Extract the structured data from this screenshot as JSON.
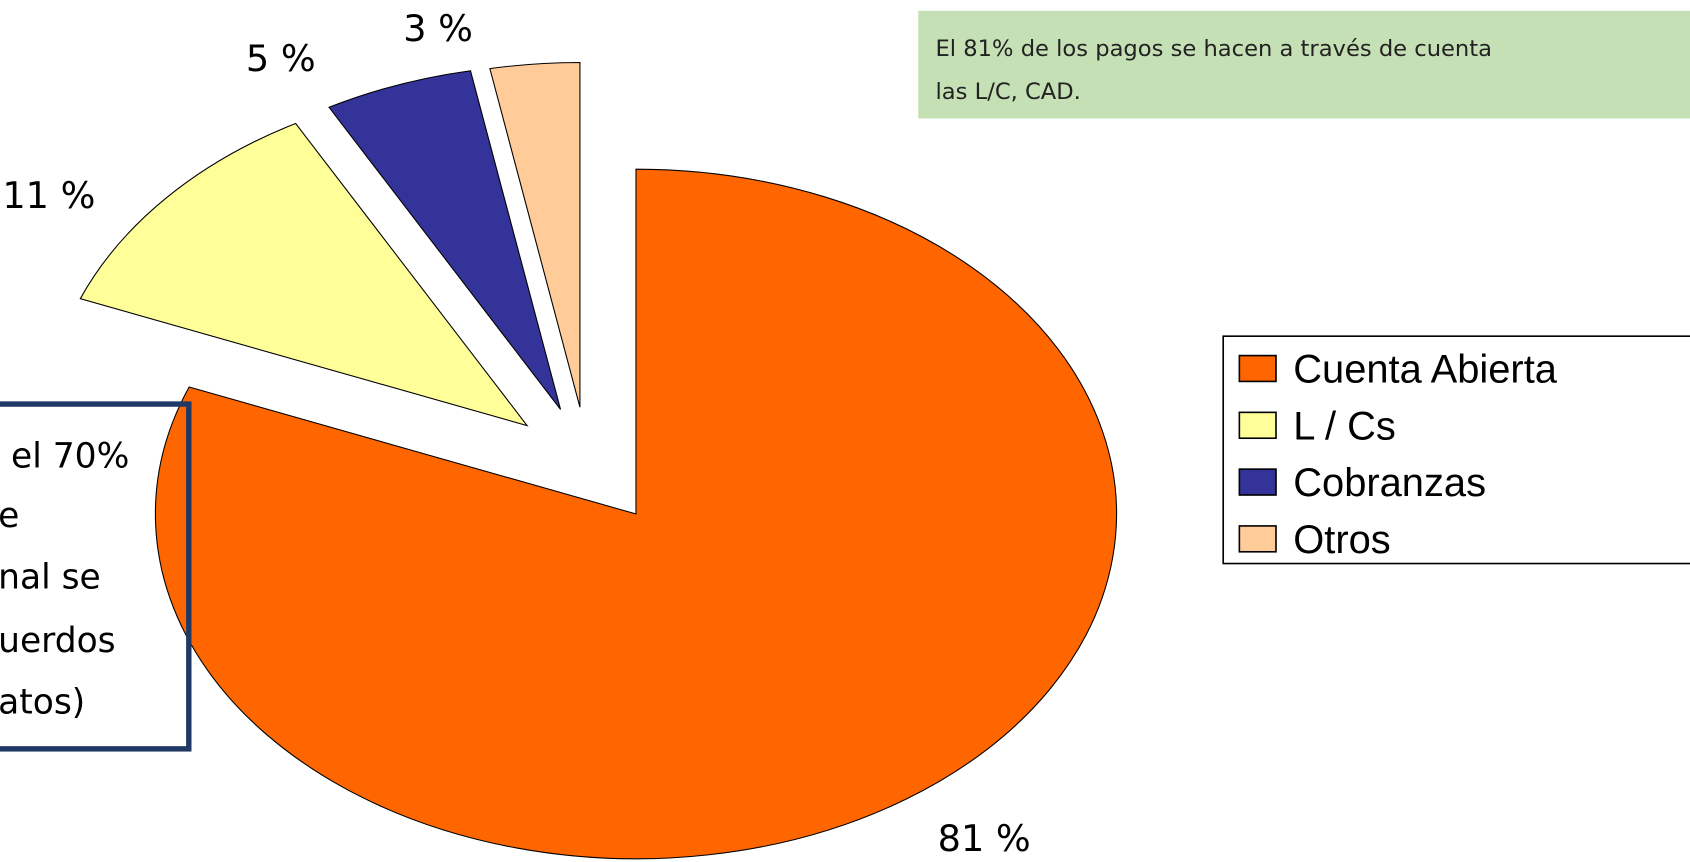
{
  "chart_data": {
    "type": "pie",
    "categories": [
      "Cuenta Abierta",
      "L / Cs",
      "Cobranzas",
      "Otros"
    ],
    "values": [
      81,
      11,
      5,
      3
    ],
    "value_labels": [
      "81 %",
      "11 %",
      "5 %",
      "3 %"
    ],
    "colors": [
      "#ff6600",
      "#ffff99",
      "#333399",
      "#ffcc99"
    ],
    "legend": "right",
    "annotations": [
      {
        "lines": [
          "El 81% de los pagos se hacen a través de cuenta",
          "las L/C, CAD."
        ]
      },
      {
        "lines": [
          "el 70%",
          "e",
          "nal se",
          "uerdos",
          "atos)"
        ]
      }
    ]
  }
}
